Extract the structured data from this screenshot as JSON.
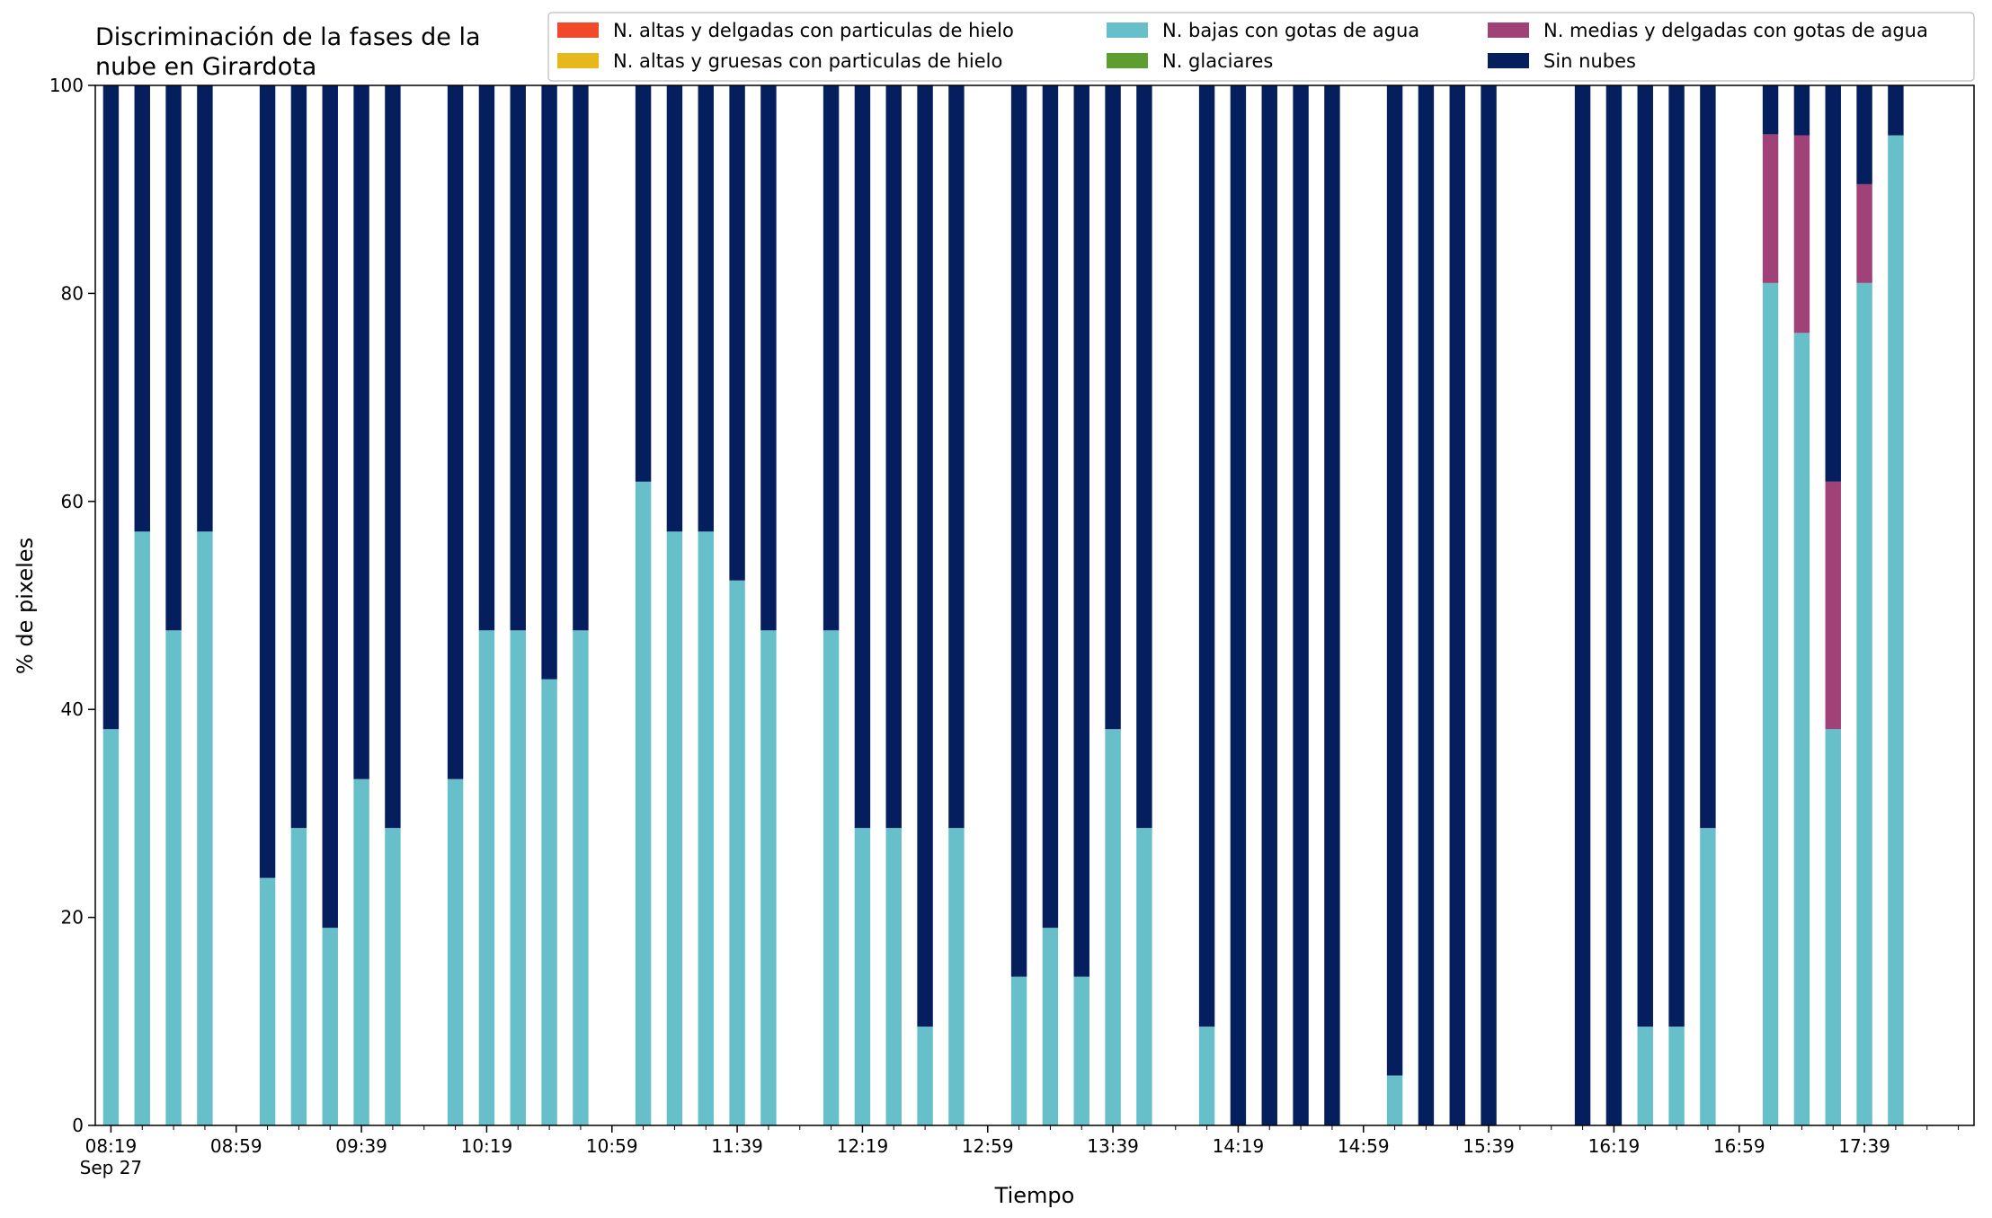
{
  "chart_data": {
    "type": "bar",
    "stacked": true,
    "title_line1": "Discriminación de la fases de la",
    "title_line2": "nube en Girardota",
    "xlabel": "Tiempo",
    "ylabel": "% de pixeles",
    "ylim": [
      0,
      100
    ],
    "yticks": [
      0,
      20,
      40,
      60,
      80,
      100
    ],
    "xlim": [
      "08:14",
      "18:14"
    ],
    "x_interval_minutes": 10,
    "xtick_labels": [
      "08:19",
      "08:59",
      "09:39",
      "10:19",
      "10:59",
      "11:39",
      "12:19",
      "12:59",
      "13:39",
      "14:19",
      "14:59",
      "15:39",
      "16:19",
      "16:59",
      "17:39"
    ],
    "xtick_date_label": "Sep 27",
    "grid": false,
    "legend_position": "top-right",
    "x": [
      "08:19",
      "08:29",
      "08:39",
      "08:49",
      "08:59",
      "09:09",
      "09:19",
      "09:29",
      "09:39",
      "09:49",
      "09:59",
      "10:09",
      "10:19",
      "10:29",
      "10:39",
      "10:49",
      "10:59",
      "11:09",
      "11:19",
      "11:29",
      "11:39",
      "11:49",
      "11:59",
      "12:09",
      "12:19",
      "12:29",
      "12:39",
      "12:49",
      "12:59",
      "13:09",
      "13:19",
      "13:29",
      "13:39",
      "13:49",
      "13:59",
      "14:09",
      "14:19",
      "14:29",
      "14:39",
      "14:49",
      "14:59",
      "15:09",
      "15:19",
      "15:29",
      "15:39",
      "15:49",
      "15:59",
      "16:09",
      "16:19",
      "16:29",
      "16:39",
      "16:49",
      "16:59",
      "17:09",
      "17:19",
      "17:29",
      "17:39",
      "17:49"
    ],
    "series": [
      {
        "name": "N. altas y delgadas con particulas de hielo",
        "color": "#f04a2a",
        "values": [
          0,
          0,
          0,
          0,
          null,
          0,
          0,
          0,
          0,
          0,
          null,
          0,
          0,
          0,
          0,
          0,
          null,
          0,
          0,
          0,
          0,
          0,
          null,
          0,
          0,
          0,
          0,
          0,
          null,
          0,
          0,
          0,
          0,
          0,
          null,
          0,
          0,
          0,
          0,
          0,
          null,
          0,
          0,
          0,
          0,
          null,
          null,
          0,
          0,
          0,
          0,
          0,
          null,
          0,
          0,
          0,
          0,
          0
        ]
      },
      {
        "name": "N. altas y gruesas con particulas de hielo",
        "color": "#e6b81c",
        "values": [
          0,
          0,
          0,
          0,
          null,
          0,
          0,
          0,
          0,
          0,
          null,
          0,
          0,
          0,
          0,
          0,
          null,
          0,
          0,
          0,
          0,
          0,
          null,
          0,
          0,
          0,
          0,
          0,
          null,
          0,
          0,
          0,
          0,
          0,
          null,
          0,
          0,
          0,
          0,
          0,
          null,
          0,
          0,
          0,
          0,
          null,
          null,
          0,
          0,
          0,
          0,
          0,
          null,
          0,
          0,
          0,
          0,
          0
        ]
      },
      {
        "name": "N. bajas con gotas de agua",
        "color": "#67bfca",
        "values": [
          38.1,
          57.1,
          47.6,
          57.1,
          null,
          23.8,
          28.6,
          19.0,
          33.3,
          28.6,
          null,
          33.3,
          47.6,
          47.6,
          42.9,
          47.6,
          null,
          61.9,
          57.1,
          57.1,
          52.4,
          47.6,
          null,
          47.6,
          28.6,
          28.6,
          9.5,
          28.6,
          null,
          14.3,
          19.0,
          14.3,
          38.1,
          28.6,
          null,
          9.5,
          0,
          0,
          0,
          0,
          null,
          4.8,
          0,
          0,
          0,
          null,
          null,
          0,
          0,
          9.5,
          9.5,
          28.6,
          null,
          81.0,
          76.2,
          38.1,
          81.0,
          95.2
        ]
      },
      {
        "name": "N. glaciares",
        "color": "#5e9e30",
        "values": [
          0,
          0,
          0,
          0,
          null,
          0,
          0,
          0,
          0,
          0,
          null,
          0,
          0,
          0,
          0,
          0,
          null,
          0,
          0,
          0,
          0,
          0,
          null,
          0,
          0,
          0,
          0,
          0,
          null,
          0,
          0,
          0,
          0,
          0,
          null,
          0,
          0,
          0,
          0,
          0,
          null,
          0,
          0,
          0,
          0,
          null,
          null,
          0,
          0,
          0,
          0,
          0,
          null,
          0,
          0,
          0,
          0,
          0
        ]
      },
      {
        "name": "N. medias y delgadas con gotas de agua",
        "color": "#a04277",
        "values": [
          0,
          0,
          0,
          0,
          null,
          0,
          0,
          0,
          0,
          0,
          null,
          0,
          0,
          0,
          0,
          0,
          null,
          0,
          0,
          0,
          0,
          0,
          null,
          0,
          0,
          0,
          0,
          0,
          null,
          0,
          0,
          0,
          0,
          0,
          null,
          0,
          0,
          0,
          0,
          0,
          null,
          0,
          0,
          0,
          0,
          null,
          null,
          0,
          0,
          0,
          0,
          0,
          null,
          14.3,
          19.0,
          23.8,
          9.5,
          0
        ]
      },
      {
        "name": "Sin nubes",
        "color": "#051e5e",
        "values": [
          61.9,
          42.9,
          52.4,
          42.9,
          null,
          76.2,
          71.4,
          81.0,
          66.7,
          71.4,
          null,
          66.7,
          52.4,
          52.4,
          57.1,
          52.4,
          null,
          38.1,
          42.9,
          42.9,
          47.6,
          52.4,
          null,
          52.4,
          71.4,
          71.4,
          90.5,
          71.4,
          null,
          85.7,
          81.0,
          85.7,
          61.9,
          71.4,
          null,
          90.5,
          100,
          100,
          100,
          100,
          null,
          95.2,
          100,
          100,
          100,
          null,
          null,
          100,
          100,
          90.5,
          90.5,
          71.4,
          null,
          4.7,
          4.8,
          38.1,
          9.5,
          4.8
        ]
      }
    ]
  }
}
